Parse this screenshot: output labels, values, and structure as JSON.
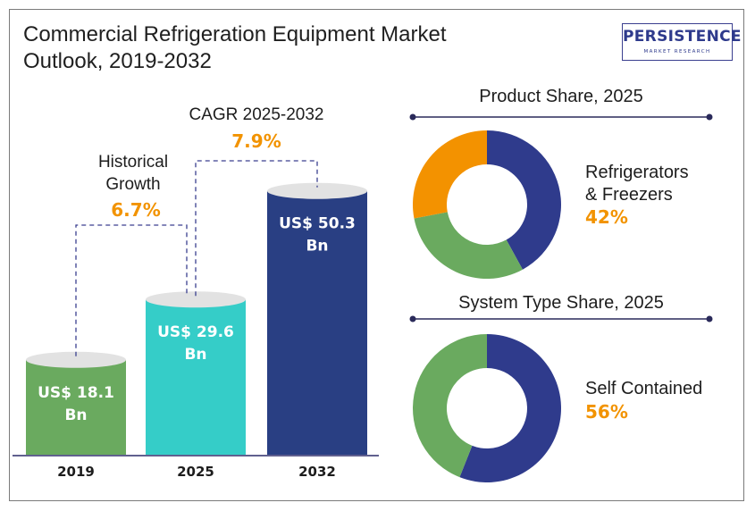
{
  "title_line1": "Commercial Refrigeration Equipment Market",
  "title_line2": "Outlook, 2019-2032",
  "logo": {
    "main": "PERSISTENCE",
    "sub": "MARKET RESEARCH"
  },
  "colors": {
    "green": "#6aaa5f",
    "teal": "#35cdc8",
    "navy": "#293f83",
    "orange": "#f29300",
    "donut_navy": "#2f3b8c"
  },
  "chart_data": [
    {
      "type": "bar",
      "categories": [
        "2019",
        "2025",
        "2032"
      ],
      "values": [
        18.1,
        29.6,
        50.3
      ],
      "value_labels": [
        [
          "US$ 18.1",
          "Bn"
        ],
        [
          "US$ 29.6",
          "Bn"
        ],
        [
          "US$ 50.3",
          "Bn"
        ]
      ],
      "annotations": [
        {
          "label_lines": [
            "Historical",
            "Growth"
          ],
          "value": "6.7%"
        },
        {
          "label_lines": [
            "CAGR 2025-2032"
          ],
          "value": "7.9%"
        }
      ]
    },
    {
      "type": "pie",
      "title": "Product Share, 2025",
      "slices": [
        {
          "value": 42,
          "color": "#2f3b8c"
        },
        {
          "value": 30,
          "color": "#6aaa5f"
        },
        {
          "value": 28,
          "color": "#f39200"
        }
      ],
      "highlight_label_lines": [
        "Refrigerators",
        "& Freezers"
      ],
      "highlight_value": "42%"
    },
    {
      "type": "pie",
      "title": "System Type  Share, 2025",
      "slices": [
        {
          "value": 56,
          "color": "#2f3b8c"
        },
        {
          "value": 44,
          "color": "#6aaa5f"
        }
      ],
      "highlight_label_lines": [
        "Self Contained"
      ],
      "highlight_value": "56%"
    }
  ]
}
